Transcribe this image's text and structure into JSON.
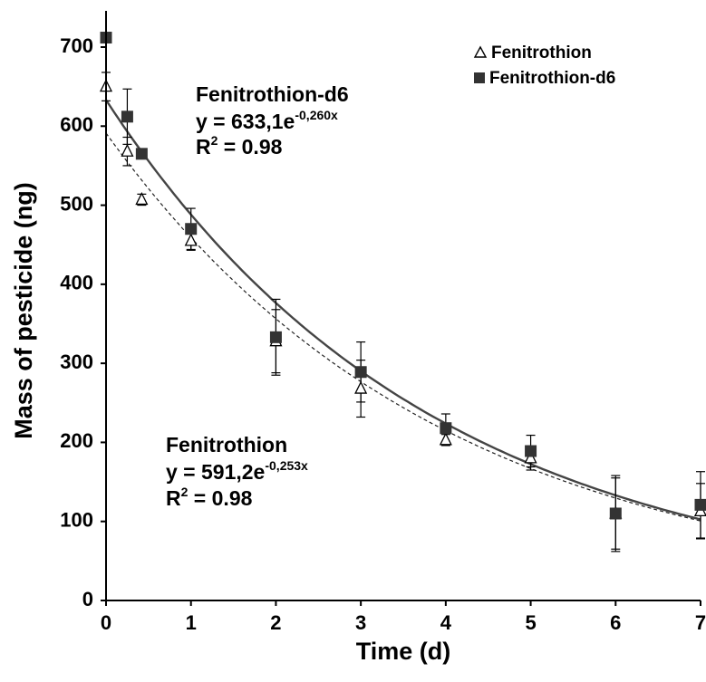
{
  "chart_data": {
    "type": "scatter",
    "xlabel": "Time (d)",
    "ylabel": "Mass of pesticide (ng)",
    "xlim": [
      0,
      7
    ],
    "ylim": [
      0,
      700
    ],
    "xticks": [
      "0",
      "1",
      "2",
      "3",
      "4",
      "5",
      "6",
      "7"
    ],
    "yticks": [
      "0",
      "100",
      "200",
      "300",
      "400",
      "500",
      "600",
      "700"
    ],
    "grid": false,
    "legend_position": "top-right",
    "series": [
      {
        "name": "Fenitrothion",
        "marker": "open-triangle",
        "color": "#000000",
        "fit_style": "dashed",
        "fit": {
          "a": 591.2,
          "b": -0.253
        },
        "points": [
          {
            "x": 0,
            "y": 650,
            "err": 18
          },
          {
            "x": 0.25,
            "y": 568,
            "err": 18
          },
          {
            "x": 0.42,
            "y": 507,
            "err": 7
          },
          {
            "x": 1,
            "y": 455,
            "err": 12
          },
          {
            "x": 2,
            "y": 328,
            "err": 40
          },
          {
            "x": 3,
            "y": 268,
            "err": 36
          },
          {
            "x": 4,
            "y": 203,
            "err": 7
          },
          {
            "x": 5,
            "y": 180,
            "err": 15
          },
          {
            "x": 6,
            "y": 110,
            "err": 45
          },
          {
            "x": 7,
            "y": 113,
            "err": 35
          }
        ]
      },
      {
        "name": "Fenitrothion-d6",
        "marker": "filled-square",
        "color": "#333333",
        "fit_style": "solid",
        "fit": {
          "a": 633.1,
          "b": -0.26
        },
        "points": [
          {
            "x": 0,
            "y": 712,
            "err": 0
          },
          {
            "x": 0.25,
            "y": 612,
            "err": 35
          },
          {
            "x": 0.42,
            "y": 565,
            "err": 5
          },
          {
            "x": 1,
            "y": 470,
            "err": 26
          },
          {
            "x": 2,
            "y": 333,
            "err": 48
          },
          {
            "x": 3,
            "y": 289,
            "err": 38
          },
          {
            "x": 4,
            "y": 218,
            "err": 18
          },
          {
            "x": 5,
            "y": 189,
            "err": 20
          },
          {
            "x": 6,
            "y": 110,
            "err": 48
          },
          {
            "x": 7,
            "y": 121,
            "err": 42
          }
        ]
      }
    ],
    "annotations": [
      {
        "title": "Fenitrothion-d6",
        "eq_main": "y = 633,1e",
        "eq_exp": "-0,260x",
        "r2_main": "R",
        "r2_sup": "2",
        "r2_val": " = 0.98"
      },
      {
        "title": "Fenitrothion",
        "eq_main": "y = 591,2e",
        "eq_exp": "-0,253x",
        "r2_main": "R",
        "r2_sup": "2",
        "r2_val": " = 0.98"
      }
    ]
  }
}
